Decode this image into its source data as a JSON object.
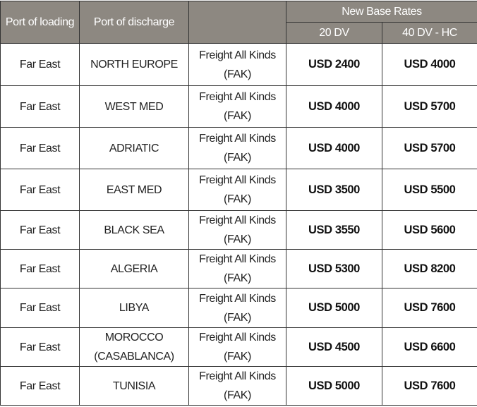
{
  "header": {
    "port_of_loading": "Port of loading",
    "port_of_discharge": "Port of discharge",
    "commodity": "",
    "new_base_rates": "New Base Rates",
    "col_20dv": "20 DV",
    "col_40dvhc": "40 DV - HC"
  },
  "colors": {
    "header_bg": "#8d8881",
    "header_text": "#ffffff"
  },
  "rows": [
    {
      "loading": "Far East",
      "discharge": "NORTH EUROPE",
      "commodity": "Freight All Kinds (FAK)",
      "rate_20": "USD 2400",
      "rate_40": "USD 4000"
    },
    {
      "loading": "Far East",
      "discharge": "WEST MED",
      "commodity": "Freight All Kinds (FAK)",
      "rate_20": "USD 4000",
      "rate_40": "USD 5700"
    },
    {
      "loading": "Far East",
      "discharge": "ADRIATIC",
      "commodity": "Freight All Kinds (FAK)",
      "rate_20": "USD 4000",
      "rate_40": "USD 5700"
    },
    {
      "loading": "Far East",
      "discharge": "EAST MED",
      "commodity": "Freight All Kinds (FAK)",
      "rate_20": "USD 3500",
      "rate_40": "USD 5500"
    },
    {
      "loading": "Far East",
      "discharge": "BLACK SEA",
      "commodity": "Freight All Kinds (FAK)",
      "rate_20": "USD 3550",
      "rate_40": "USD 5600"
    },
    {
      "loading": "Far East",
      "discharge": "ALGERIA",
      "commodity": "Freight All Kinds (FAK)",
      "rate_20": "USD 5300",
      "rate_40": "USD 8200"
    },
    {
      "loading": "Far East",
      "discharge": "LIBYA",
      "commodity": "Freight All Kinds (FAK)",
      "rate_20": "USD 5000",
      "rate_40": "USD 7600"
    },
    {
      "loading": "Far East",
      "discharge": "MOROCCO (CASABLANCA)",
      "commodity": "Freight All Kinds (FAK)",
      "rate_20": "USD 4500",
      "rate_40": "USD 6600"
    },
    {
      "loading": "Far East",
      "discharge": "TUNISIA",
      "commodity": "Freight All Kinds (FAK)",
      "rate_20": "USD 5000",
      "rate_40": "USD 7600"
    }
  ]
}
